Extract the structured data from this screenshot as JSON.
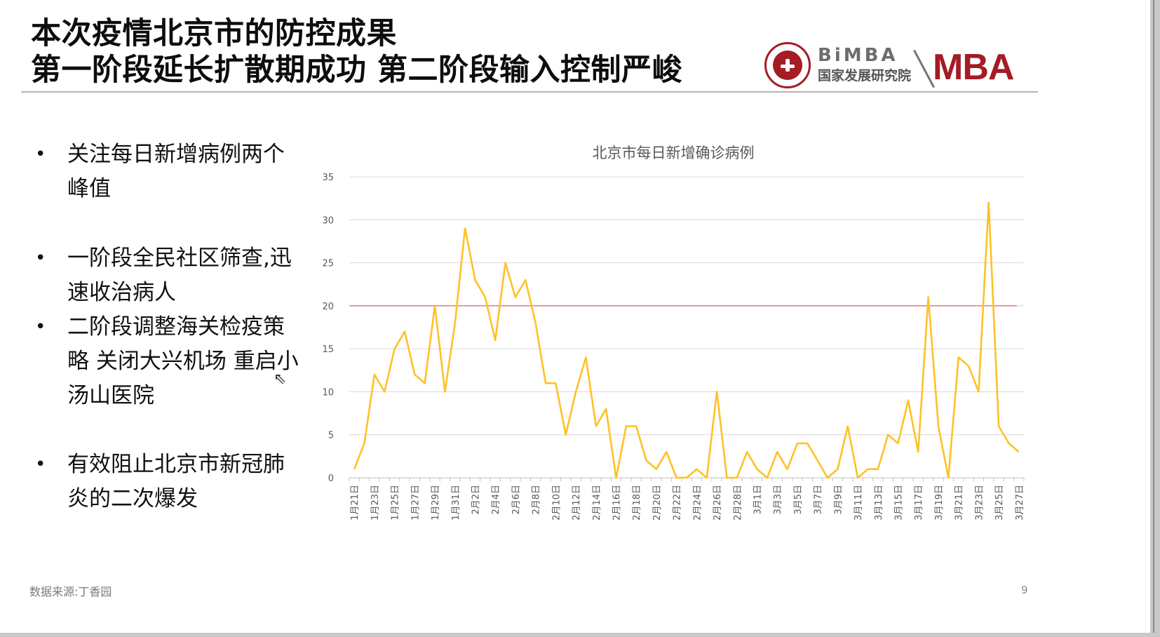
{
  "title": {
    "line1": "本次疫情北京市的防控成果",
    "line2": "第一阶段延长扩散期成功 第二阶段输入控制严峻"
  },
  "logo": {
    "bimba": "BiMBA",
    "subtitle": "国家发展研究院",
    "mba": "MBA",
    "colors": {
      "brand_red": "#a51c24",
      "gray": "#6d6d6d"
    }
  },
  "bullets": [
    {
      "marker": "•",
      "text": "关注每日新增病例两个峰值"
    },
    {
      "marker": "•",
      "text": "一阶段全民社区筛查,迅速收治病人"
    },
    {
      "marker": "•",
      "text": "二阶段调整海关检疫策略 关闭大兴机场 重启小汤山医院"
    },
    {
      "marker": "•",
      "text": "有效阻止北京市新冠肺炎的二次爆发"
    }
  ],
  "chart_data": {
    "type": "line",
    "title": "北京市每日新增确诊病例",
    "xlabel": "",
    "ylabel": "",
    "ylim": [
      0,
      35
    ],
    "yticks": [
      0,
      5,
      10,
      15,
      20,
      25,
      30,
      35
    ],
    "grid": true,
    "legend": "none",
    "series_color": "#FFC125",
    "reference_line": {
      "y": 20,
      "color": "#F08080"
    },
    "x": [
      "1月21日",
      "1月22日",
      "1月23日",
      "1月24日",
      "1月25日",
      "1月26日",
      "1月27日",
      "1月28日",
      "1月29日",
      "1月30日",
      "1月31日",
      "2月1日",
      "2月2日",
      "2月3日",
      "2月4日",
      "2月5日",
      "2月6日",
      "2月7日",
      "2月8日",
      "2月9日",
      "2月10日",
      "2月11日",
      "2月12日",
      "2月13日",
      "2月14日",
      "2月15日",
      "2月16日",
      "2月17日",
      "2月18日",
      "2月19日",
      "2月20日",
      "2月21日",
      "2月22日",
      "2月23日",
      "2月24日",
      "2月25日",
      "2月26日",
      "2月27日",
      "2月28日",
      "2月29日",
      "3月1日",
      "3月2日",
      "3月3日",
      "3月4日",
      "3月5日",
      "3月6日",
      "3月7日",
      "3月8日",
      "3月9日",
      "3月10日",
      "3月11日",
      "3月12日",
      "3月13日",
      "3月14日",
      "3月15日",
      "3月16日",
      "3月17日",
      "3月18日",
      "3月19日",
      "3月20日",
      "3月21日",
      "3月22日",
      "3月23日",
      "3月24日",
      "3月25日",
      "3月26日",
      "3月27日"
    ],
    "xtick_labels": [
      "1月21日",
      "1月23日",
      "1月25日",
      "1月27日",
      "1月29日",
      "1月31日",
      "2月2日",
      "2月4日",
      "2月6日",
      "2月8日",
      "2月10日",
      "2月12日",
      "2月14日",
      "2月16日",
      "2月18日",
      "2月20日",
      "2月22日",
      "2月24日",
      "2月26日",
      "2月28日",
      "3月1日",
      "3月3日",
      "3月5日",
      "3月7日",
      "3月9日",
      "3月11日",
      "3月13日",
      "3月15日",
      "3月17日",
      "3月19日",
      "3月21日",
      "3月23日",
      "3月25日",
      "3月27日"
    ],
    "series": [
      {
        "values": [
          1,
          4,
          12,
          10,
          15,
          17,
          12,
          11,
          20,
          10,
          18,
          29,
          23,
          21,
          16,
          25,
          21,
          23,
          18,
          11,
          11,
          5,
          10,
          14,
          6,
          8,
          0,
          6,
          6,
          2,
          1,
          3,
          0,
          0,
          1,
          0,
          10,
          0,
          0,
          3,
          1,
          0,
          3,
          1,
          4,
          4,
          2,
          0,
          1,
          6,
          0,
          1,
          1,
          5,
          4,
          9,
          3,
          21,
          6,
          0,
          14,
          13,
          10,
          32,
          6,
          4,
          3
        ]
      }
    ]
  },
  "footer": {
    "source": "数据来源:丁香园",
    "page_number": "9"
  }
}
